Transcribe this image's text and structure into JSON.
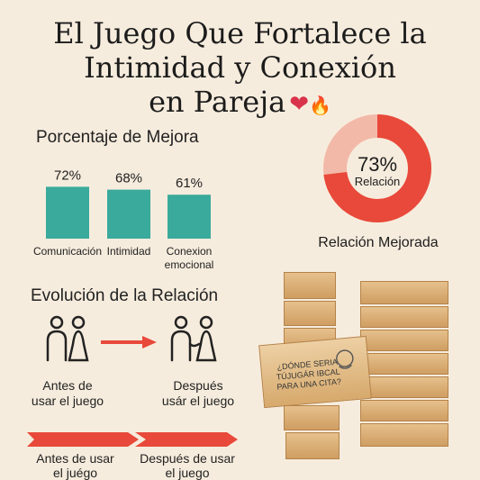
{
  "title": {
    "line1": "El Juego Que Fortalece la",
    "line2": "Intimidad y Conexión",
    "line3": "en Pareja"
  },
  "icons": {
    "title_emoji": [
      "heart-icon",
      "fire-icon"
    ],
    "couple": "couple-icon",
    "arrow": "arrow-right-icon"
  },
  "colors": {
    "bar": "#3aaa9c",
    "ring": "#e8493a",
    "arrow": "#e8493a",
    "background": "#f6ecdd"
  },
  "chart_data": [
    {
      "type": "bar",
      "title": "Porcentaje de Mejora",
      "categories": [
        "Comunicación",
        "Intimidad",
        "Conexion emocional"
      ],
      "category_lines": [
        [
          "Comunicación"
        ],
        [
          "Intimidad"
        ],
        [
          "Conexion",
          "emocional"
        ]
      ],
      "values": [
        72,
        68,
        61
      ],
      "value_labels": [
        "72%",
        "68%",
        "61%"
      ]
    },
    {
      "type": "pie",
      "title": "Relación Mejorada",
      "value": 73,
      "value_label": "73%",
      "center_label": "Relación"
    }
  ],
  "evolution": {
    "heading": "Evolución de la Relación",
    "before": [
      "Antes de",
      "usar el juego"
    ],
    "after": [
      "Después",
      "usár el juego"
    ]
  },
  "timeline": {
    "before": [
      "Antes de usar",
      "el juégo"
    ],
    "after": [
      "Después de usar",
      "el juego"
    ]
  },
  "card": {
    "lines": [
      "¿DÓNDE SERIA",
      "TÚJUGÁR IBCAL",
      "PARA UNA CITA?"
    ]
  }
}
